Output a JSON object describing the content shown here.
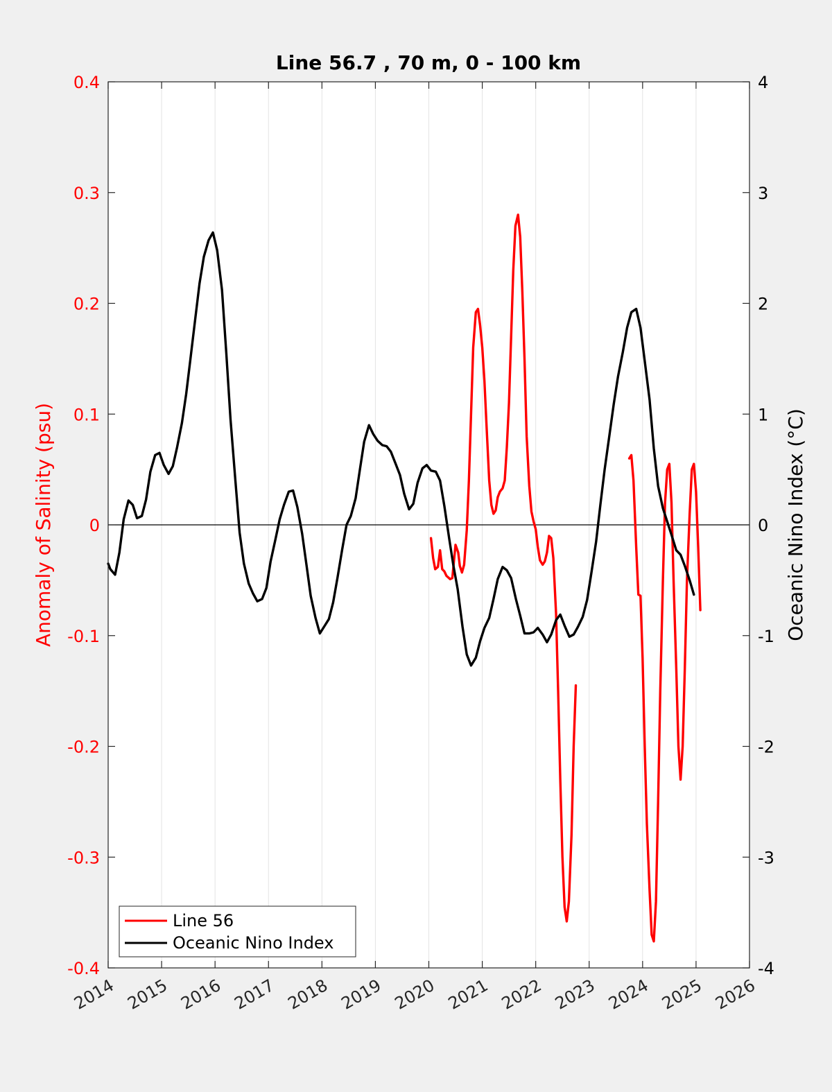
{
  "chart_data": {
    "type": "line",
    "title": "Line 56.7 , 70 m, 0 - 100 km",
    "xlim": [
      2014,
      2026
    ],
    "x_ticks": [
      "2014",
      "2015",
      "2016",
      "2017",
      "2018",
      "2019",
      "2020",
      "2021",
      "2022",
      "2023",
      "2024",
      "2025",
      "2026"
    ],
    "grid": "vertical",
    "legend_position": "bottom-left",
    "colors": {
      "left_axis": "#ff0000",
      "right_axis": "#000000",
      "zero_line": "#000000"
    },
    "left_axis": {
      "label": "Anomaly of Salinity (psu)",
      "ylim": [
        -0.4,
        0.4
      ],
      "ticks": [
        "-0.4",
        "-0.3",
        "-0.2",
        "-0.1",
        "0",
        "0.1",
        "0.2",
        "0.3",
        "0.4"
      ]
    },
    "right_axis": {
      "label": "Oceanic Nino Index (°C)",
      "ylim": [
        -4,
        4
      ],
      "ticks": [
        "-4",
        "-3",
        "-2",
        "-1",
        "0",
        "1",
        "2",
        "3",
        "4"
      ]
    },
    "series": [
      {
        "name": "Line 56",
        "axis": "left",
        "color": "#ff0000",
        "segments": [
          [
            [
              2020.04,
              -0.012
            ],
            [
              2020.08,
              -0.03
            ],
            [
              2020.12,
              -0.04
            ],
            [
              2020.17,
              -0.038
            ],
            [
              2020.21,
              -0.023
            ],
            [
              2020.25,
              -0.04
            ],
            [
              2020.29,
              -0.042
            ],
            [
              2020.33,
              -0.046
            ],
            [
              2020.4,
              -0.049
            ],
            [
              2020.44,
              -0.048
            ],
            [
              2020.5,
              -0.018
            ],
            [
              2020.55,
              -0.025
            ],
            [
              2020.58,
              -0.037
            ],
            [
              2020.62,
              -0.043
            ],
            [
              2020.66,
              -0.036
            ],
            [
              2020.71,
              -0.005
            ],
            [
              2020.75,
              0.04
            ],
            [
              2020.79,
              0.1
            ],
            [
              2020.83,
              0.16
            ],
            [
              2020.88,
              0.192
            ],
            [
              2020.92,
              0.195
            ],
            [
              2020.96,
              0.18
            ],
            [
              2021.0,
              0.16
            ],
            [
              2021.04,
              0.13
            ],
            [
              2021.08,
              0.09
            ],
            [
              2021.13,
              0.04
            ],
            [
              2021.17,
              0.018
            ],
            [
              2021.21,
              0.01
            ],
            [
              2021.25,
              0.013
            ],
            [
              2021.29,
              0.025
            ],
            [
              2021.33,
              0.03
            ],
            [
              2021.38,
              0.033
            ],
            [
              2021.42,
              0.04
            ],
            [
              2021.46,
              0.07
            ],
            [
              2021.5,
              0.11
            ],
            [
              2021.54,
              0.17
            ],
            [
              2021.58,
              0.23
            ],
            [
              2021.62,
              0.27
            ],
            [
              2021.67,
              0.28
            ],
            [
              2021.71,
              0.26
            ],
            [
              2021.75,
              0.21
            ],
            [
              2021.79,
              0.15
            ],
            [
              2021.83,
              0.08
            ],
            [
              2021.88,
              0.035
            ],
            [
              2021.92,
              0.012
            ],
            [
              2021.96,
              0.003
            ],
            [
              2022.0,
              -0.004
            ],
            [
              2022.04,
              -0.02
            ],
            [
              2022.08,
              -0.032
            ],
            [
              2022.13,
              -0.036
            ],
            [
              2022.17,
              -0.033
            ],
            [
              2022.21,
              -0.025
            ],
            [
              2022.25,
              -0.01
            ],
            [
              2022.29,
              -0.012
            ],
            [
              2022.33,
              -0.03
            ],
            [
              2022.38,
              -0.08
            ],
            [
              2022.42,
              -0.15
            ],
            [
              2022.46,
              -0.23
            ],
            [
              2022.5,
              -0.3
            ],
            [
              2022.54,
              -0.345
            ],
            [
              2022.58,
              -0.358
            ],
            [
              2022.62,
              -0.34
            ],
            [
              2022.67,
              -0.28
            ],
            [
              2022.71,
              -0.2
            ],
            [
              2022.75,
              -0.145
            ]
          ],
          [
            [
              2023.75,
              0.06
            ],
            [
              2023.79,
              0.063
            ],
            [
              2023.83,
              0.04
            ],
            [
              2023.88,
              -0.02
            ],
            [
              2023.92,
              -0.063
            ],
            [
              2023.96,
              -0.064
            ],
            [
              2024.0,
              -0.12
            ],
            [
              2024.04,
              -0.2
            ],
            [
              2024.08,
              -0.27
            ],
            [
              2024.13,
              -0.33
            ],
            [
              2024.17,
              -0.37
            ],
            [
              2024.21,
              -0.376
            ],
            [
              2024.25,
              -0.34
            ],
            [
              2024.29,
              -0.25
            ],
            [
              2024.33,
              -0.15
            ],
            [
              2024.38,
              -0.05
            ],
            [
              2024.42,
              0.02
            ],
            [
              2024.46,
              0.05
            ],
            [
              2024.5,
              0.055
            ],
            [
              2024.54,
              0.02
            ],
            [
              2024.58,
              -0.05
            ],
            [
              2024.63,
              -0.13
            ],
            [
              2024.67,
              -0.2
            ],
            [
              2024.71,
              -0.23
            ],
            [
              2024.75,
              -0.2
            ],
            [
              2024.79,
              -0.13
            ],
            [
              2024.83,
              -0.05
            ],
            [
              2024.88,
              0.01
            ],
            [
              2024.92,
              0.05
            ],
            [
              2024.96,
              0.055
            ],
            [
              2025.0,
              0.03
            ],
            [
              2025.04,
              -0.02
            ],
            [
              2025.08,
              -0.077
            ]
          ]
        ]
      },
      {
        "name": "Oceanic Nino Index",
        "axis": "right",
        "color": "#000000",
        "segments": [
          [
            [
              2014.0,
              -0.35
            ],
            [
              2014.04,
              -0.4
            ],
            [
              2014.13,
              -0.45
            ],
            [
              2014.21,
              -0.25
            ],
            [
              2014.29,
              0.05
            ],
            [
              2014.38,
              0.22
            ],
            [
              2014.46,
              0.18
            ],
            [
              2014.54,
              0.06
            ],
            [
              2014.63,
              0.08
            ],
            [
              2014.71,
              0.23
            ],
            [
              2014.79,
              0.48
            ],
            [
              2014.88,
              0.63
            ],
            [
              2014.96,
              0.65
            ],
            [
              2015.04,
              0.54
            ],
            [
              2015.13,
              0.46
            ],
            [
              2015.21,
              0.53
            ],
            [
              2015.29,
              0.7
            ],
            [
              2015.38,
              0.92
            ],
            [
              2015.46,
              1.18
            ],
            [
              2015.54,
              1.5
            ],
            [
              2015.63,
              1.86
            ],
            [
              2015.71,
              2.18
            ],
            [
              2015.79,
              2.42
            ],
            [
              2015.88,
              2.57
            ],
            [
              2015.96,
              2.64
            ],
            [
              2016.04,
              2.48
            ],
            [
              2016.13,
              2.12
            ],
            [
              2016.21,
              1.55
            ],
            [
              2016.29,
              0.95
            ],
            [
              2016.38,
              0.4
            ],
            [
              2016.46,
              -0.07
            ],
            [
              2016.54,
              -0.35
            ],
            [
              2016.63,
              -0.53
            ],
            [
              2016.71,
              -0.62
            ],
            [
              2016.79,
              -0.69
            ],
            [
              2016.88,
              -0.67
            ],
            [
              2016.96,
              -0.57
            ],
            [
              2017.04,
              -0.33
            ],
            [
              2017.13,
              -0.13
            ],
            [
              2017.21,
              0.05
            ],
            [
              2017.29,
              0.18
            ],
            [
              2017.38,
              0.3
            ],
            [
              2017.46,
              0.31
            ],
            [
              2017.54,
              0.16
            ],
            [
              2017.63,
              -0.08
            ],
            [
              2017.71,
              -0.36
            ],
            [
              2017.79,
              -0.64
            ],
            [
              2017.88,
              -0.84
            ],
            [
              2017.96,
              -0.98
            ],
            [
              2018.04,
              -0.92
            ],
            [
              2018.13,
              -0.85
            ],
            [
              2018.21,
              -0.7
            ],
            [
              2018.29,
              -0.48
            ],
            [
              2018.38,
              -0.22
            ],
            [
              2018.46,
              0.0
            ],
            [
              2018.54,
              0.08
            ],
            [
              2018.63,
              0.24
            ],
            [
              2018.71,
              0.5
            ],
            [
              2018.79,
              0.75
            ],
            [
              2018.88,
              0.9
            ],
            [
              2018.96,
              0.82
            ],
            [
              2019.04,
              0.76
            ],
            [
              2019.13,
              0.72
            ],
            [
              2019.21,
              0.71
            ],
            [
              2019.29,
              0.66
            ],
            [
              2019.38,
              0.55
            ],
            [
              2019.46,
              0.45
            ],
            [
              2019.54,
              0.28
            ],
            [
              2019.63,
              0.14
            ],
            [
              2019.71,
              0.19
            ],
            [
              2019.79,
              0.38
            ],
            [
              2019.88,
              0.51
            ],
            [
              2019.96,
              0.54
            ],
            [
              2020.04,
              0.49
            ],
            [
              2020.13,
              0.48
            ],
            [
              2020.21,
              0.4
            ],
            [
              2020.29,
              0.17
            ],
            [
              2020.38,
              -0.12
            ],
            [
              2020.46,
              -0.37
            ],
            [
              2020.54,
              -0.58
            ],
            [
              2020.63,
              -0.92
            ],
            [
              2020.71,
              -1.17
            ],
            [
              2020.79,
              -1.27
            ],
            [
              2020.88,
              -1.2
            ],
            [
              2020.96,
              -1.05
            ],
            [
              2021.04,
              -0.93
            ],
            [
              2021.13,
              -0.84
            ],
            [
              2021.21,
              -0.67
            ],
            [
              2021.29,
              -0.49
            ],
            [
              2021.38,
              -0.38
            ],
            [
              2021.46,
              -0.41
            ],
            [
              2021.54,
              -0.48
            ],
            [
              2021.63,
              -0.67
            ],
            [
              2021.71,
              -0.82
            ],
            [
              2021.79,
              -0.98
            ],
            [
              2021.88,
              -0.98
            ],
            [
              2021.96,
              -0.97
            ],
            [
              2022.04,
              -0.93
            ],
            [
              2022.13,
              -0.99
            ],
            [
              2022.21,
              -1.06
            ],
            [
              2022.29,
              -0.99
            ],
            [
              2022.38,
              -0.86
            ],
            [
              2022.46,
              -0.81
            ],
            [
              2022.54,
              -0.91
            ],
            [
              2022.63,
              -1.01
            ],
            [
              2022.71,
              -0.99
            ],
            [
              2022.79,
              -0.92
            ],
            [
              2022.88,
              -0.83
            ],
            [
              2022.96,
              -0.68
            ],
            [
              2023.04,
              -0.44
            ],
            [
              2023.13,
              -0.15
            ],
            [
              2023.21,
              0.18
            ],
            [
              2023.29,
              0.5
            ],
            [
              2023.38,
              0.81
            ],
            [
              2023.46,
              1.09
            ],
            [
              2023.54,
              1.34
            ],
            [
              2023.63,
              1.56
            ],
            [
              2023.71,
              1.78
            ],
            [
              2023.79,
              1.92
            ],
            [
              2023.88,
              1.95
            ],
            [
              2023.96,
              1.78
            ],
            [
              2024.04,
              1.48
            ],
            [
              2024.13,
              1.13
            ],
            [
              2024.21,
              0.69
            ],
            [
              2024.29,
              0.35
            ],
            [
              2024.38,
              0.15
            ],
            [
              2024.46,
              0.03
            ],
            [
              2024.54,
              -0.09
            ],
            [
              2024.63,
              -0.23
            ],
            [
              2024.71,
              -0.27
            ],
            [
              2024.79,
              -0.37
            ],
            [
              2024.88,
              -0.5
            ],
            [
              2024.96,
              -0.63
            ]
          ]
        ]
      }
    ]
  }
}
